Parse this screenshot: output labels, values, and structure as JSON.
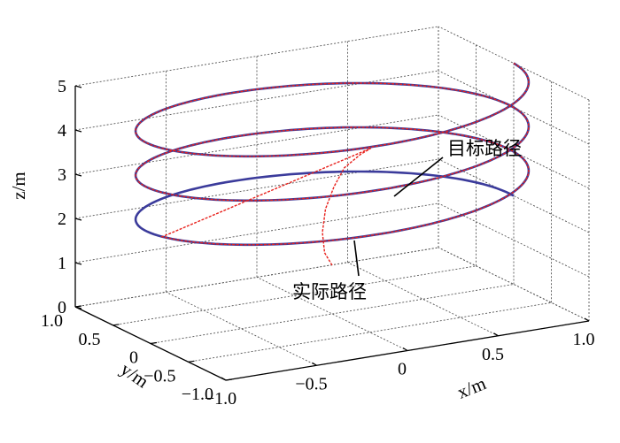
{
  "chart_data": {
    "type": "line",
    "projection": "3d",
    "grid": true,
    "xlabel": "x/m",
    "ylabel": "y/m",
    "zlabel": "z/m",
    "xlim": [
      -1.0,
      1.0
    ],
    "ylim": [
      -1.0,
      1.0
    ],
    "zlim": [
      0,
      5
    ],
    "xticks": [
      "-1.0",
      "-0.5",
      "0",
      "0.5",
      "1.0"
    ],
    "yticks": [
      "-1.0",
      "-0.5",
      "0",
      "0.5",
      "1.0"
    ],
    "zticks": [
      "0",
      "1",
      "2",
      "3",
      "4",
      "5"
    ],
    "series": [
      {
        "name": "目标路径",
        "color": "#3b3b9b",
        "description": "helix, radius 1, z from 2 to 5, 3 turns",
        "x": [
          1.0,
          0.5,
          -0.5,
          -1.0,
          -0.5,
          0.5,
          1.0,
          0.5,
          -0.5,
          -1.0,
          -0.5,
          0.5,
          1.0,
          0.5,
          -0.5,
          -1.0,
          -0.5,
          0.5,
          1.0
        ],
        "y": [
          0.0,
          0.866,
          0.866,
          0.0,
          -0.866,
          -0.866,
          0.0,
          0.866,
          0.866,
          0.0,
          -0.866,
          -0.866,
          0.0,
          0.866,
          0.866,
          0.0,
          -0.866,
          -0.866,
          0.0
        ],
        "z": [
          2.0,
          2.17,
          2.33,
          2.5,
          2.67,
          2.83,
          3.0,
          3.17,
          3.33,
          3.5,
          3.67,
          3.83,
          4.0,
          4.17,
          4.33,
          4.5,
          4.67,
          4.83,
          5.0
        ]
      },
      {
        "name": "实际路径",
        "color": "#e8211c",
        "description": "starts near (0,0,1.1), converges onto target helix by about z=2.5",
        "x": [
          0.0,
          0.0,
          0.05,
          0.15,
          0.28,
          0.42,
          0.55,
          0.62
        ],
        "y": [
          0.0,
          0.1,
          0.25,
          0.45,
          0.65,
          0.85,
          0.95,
          0.98
        ],
        "z": [
          1.1,
          1.3,
          1.6,
          1.9,
          2.15,
          2.32,
          2.45,
          2.52
        ]
      }
    ],
    "annotations": [
      "目标路径",
      "实际路径"
    ]
  }
}
